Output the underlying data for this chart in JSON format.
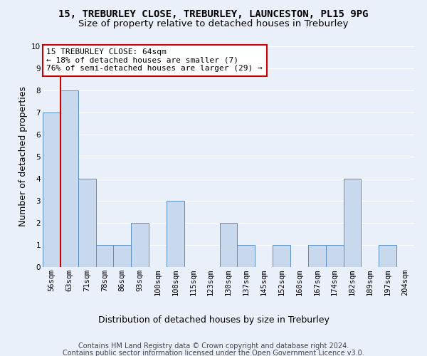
{
  "title_line1": "15, TREBURLEY CLOSE, TREBURLEY, LAUNCESTON, PL15 9PG",
  "title_line2": "Size of property relative to detached houses in Treburley",
  "xlabel": "Distribution of detached houses by size in Treburley",
  "ylabel": "Number of detached properties",
  "bar_color": "#c9d9ed",
  "bar_edge_color": "#5b8ec4",
  "categories": [
    "56sqm",
    "63sqm",
    "71sqm",
    "78sqm",
    "86sqm",
    "93sqm",
    "100sqm",
    "108sqm",
    "115sqm",
    "123sqm",
    "130sqm",
    "137sqm",
    "145sqm",
    "152sqm",
    "160sqm",
    "167sqm",
    "174sqm",
    "182sqm",
    "189sqm",
    "197sqm",
    "204sqm"
  ],
  "values": [
    7,
    8,
    4,
    1,
    1,
    2,
    0,
    3,
    0,
    0,
    2,
    1,
    0,
    1,
    0,
    1,
    1,
    4,
    0,
    1,
    0
  ],
  "annotation_line1": "15 TREBURLEY CLOSE: 64sqm",
  "annotation_line2": "← 18% of detached houses are smaller (7)",
  "annotation_line3": "76% of semi-detached houses are larger (29) →",
  "annotation_box_color": "#ffffff",
  "annotation_box_edge": "#cc0000",
  "vline_color": "#cc0000",
  "vline_x_index": 1,
  "ylim": [
    0,
    10
  ],
  "yticks": [
    0,
    1,
    2,
    3,
    4,
    5,
    6,
    7,
    8,
    9,
    10
  ],
  "footer_line1": "Contains HM Land Registry data © Crown copyright and database right 2024.",
  "footer_line2": "Contains public sector information licensed under the Open Government Licence v3.0.",
  "background_color": "#eaf0f9",
  "grid_color": "#ffffff",
  "title_fontsize": 10,
  "subtitle_fontsize": 9.5,
  "axis_label_fontsize": 9,
  "tick_fontsize": 7.5,
  "annotation_fontsize": 8,
  "footer_fontsize": 7
}
